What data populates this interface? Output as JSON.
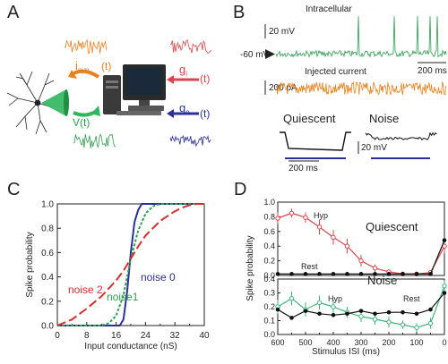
{
  "panels": {
    "A": {
      "letter": "A",
      "labels": {
        "isyn_main": "i",
        "isyn_sub": "syn",
        "isyn_t": "(t)",
        "vt": "V(t)",
        "gi_main": "g",
        "gi_sub": "i",
        "gi_t": "(t)",
        "ge_main": "g",
        "ge_sub": "e",
        "ge_t": "(t)"
      },
      "colors": {
        "orange": "#e8821e",
        "green": "#2e9e4f",
        "red": "#d9464a",
        "blue": "#2b2f99",
        "arrow_green": "#2fb65b"
      }
    },
    "B": {
      "letter": "B",
      "intracellular_label": "Intracellular",
      "scale_20mv": "20 mV",
      "v_rest": "-60 mV",
      "scale_200ms": "200 ms",
      "injected_label": "Injected current",
      "scale_200pa": "200 pA",
      "quiescent_label": "Quiescent",
      "noise_label": "Noise",
      "scale_20mv_2": "20 mV",
      "scale_200ms_2": "200 ms",
      "icons": {
        "arrow": "right-triangle-icon"
      }
    },
    "C": {
      "letter": "C"
    },
    "D": {
      "letter": "D"
    }
  },
  "chart_data": [
    {
      "type": "line",
      "panel": "C",
      "xlabel": "Input conductance (nS)",
      "ylabel": "Spike probability",
      "xlim": [
        0,
        40
      ],
      "ylim": [
        0,
        1
      ],
      "xticks": [
        0,
        8,
        16,
        24,
        32,
        40
      ],
      "xticks_minor": [
        4,
        12,
        20,
        28,
        36
      ],
      "yticks": [
        "0.0",
        "0.2",
        "0.4",
        "0.6",
        "0.8",
        "1.0"
      ],
      "series": [
        {
          "name": "noise 0",
          "color": "#2b2f99",
          "dash": "",
          "x": [
            0,
            17,
            18,
            19,
            20,
            21,
            22,
            23,
            24,
            26,
            30,
            40
          ],
          "y": [
            0,
            0,
            0.05,
            0.28,
            0.6,
            0.85,
            0.95,
            1,
            1,
            1,
            1,
            1
          ]
        },
        {
          "name": "noise1",
          "color": "#2e9e4f",
          "dash": "3,2",
          "x": [
            0,
            12,
            14,
            16,
            18,
            20,
            22,
            24,
            26,
            28,
            32,
            40
          ],
          "y": [
            0,
            0,
            0.02,
            0.08,
            0.25,
            0.55,
            0.78,
            0.92,
            0.98,
            1,
            1,
            1
          ]
        },
        {
          "name": "noise 2",
          "color": "#d62f2f",
          "dash": "10,4",
          "x": [
            0,
            4,
            8,
            12,
            16,
            18,
            20,
            22,
            24,
            26,
            28,
            30,
            32,
            34,
            36,
            38,
            40
          ],
          "y": [
            0,
            0.05,
            0.14,
            0.24,
            0.37,
            0.45,
            0.55,
            0.65,
            0.74,
            0.8,
            0.86,
            0.9,
            0.94,
            0.97,
            0.99,
            1,
            1
          ]
        }
      ]
    },
    {
      "type": "line",
      "panel": "D-top",
      "title": "Quiescent",
      "xlim": [
        600,
        0
      ],
      "ylim": [
        0,
        1
      ],
      "yticks": [
        "0.0",
        "0.2",
        "0.4",
        "0.6",
        "0.8",
        "1.0"
      ],
      "series": [
        {
          "name": "Hyp",
          "color": "#d9464a",
          "x": [
            600,
            550,
            500,
            450,
            400,
            350,
            300,
            250,
            200,
            150,
            100,
            50,
            0
          ],
          "y": [
            0.78,
            0.85,
            0.79,
            0.66,
            0.52,
            0.4,
            0.2,
            0.1,
            0.05,
            0.02,
            0.02,
            0.04,
            0.4
          ],
          "err": [
            0.08,
            0.06,
            0.07,
            0.1,
            0.1,
            0.1,
            0.08,
            0.05,
            0.03,
            0.02,
            0.02,
            0.03,
            0.1
          ]
        },
        {
          "name": "Rest",
          "color": "#111111",
          "x": [
            600,
            550,
            500,
            450,
            400,
            350,
            300,
            250,
            200,
            150,
            100,
            50,
            0
          ],
          "y": [
            0.02,
            0.02,
            0.02,
            0.02,
            0.02,
            0.02,
            0.02,
            0.02,
            0.02,
            0.02,
            0.02,
            0.02,
            0.48
          ]
        }
      ]
    },
    {
      "type": "line",
      "panel": "D-bottom",
      "title": "Noise",
      "xlabel": "Stimulus ISI (ms)",
      "ylabel": "Spike probability",
      "xlim": [
        600,
        0
      ],
      "ylim": [
        0,
        0.4
      ],
      "xticks": [
        600,
        500,
        400,
        300,
        200,
        100,
        0
      ],
      "xticks_minor": [
        550,
        450,
        350,
        250,
        150,
        50
      ],
      "yticks": [
        "0.0",
        "0.1",
        "0.2",
        "0.3",
        "0.4"
      ],
      "series": [
        {
          "name": "Hyp",
          "color": "#3db57a",
          "x": [
            600,
            550,
            500,
            450,
            400,
            350,
            300,
            250,
            200,
            150,
            100,
            50,
            0
          ],
          "y": [
            0.2,
            0.26,
            0.18,
            0.23,
            0.2,
            0.16,
            0.13,
            0.11,
            0.09,
            0.07,
            0.05,
            0.08,
            0.35
          ],
          "err": [
            0.05,
            0.05,
            0.05,
            0.05,
            0.05,
            0.04,
            0.04,
            0.04,
            0.04,
            0.03,
            0.03,
            0.04,
            0.04
          ]
        },
        {
          "name": "Rest",
          "color": "#111111",
          "x": [
            600,
            550,
            500,
            450,
            400,
            350,
            300,
            250,
            200,
            150,
            100,
            50,
            0
          ],
          "y": [
            0.18,
            0.12,
            0.17,
            0.15,
            0.14,
            0.15,
            0.17,
            0.15,
            0.16,
            0.16,
            0.15,
            0.18,
            0.3
          ]
        }
      ]
    }
  ]
}
